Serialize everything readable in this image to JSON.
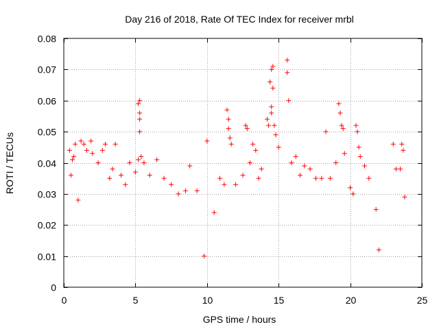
{
  "chart_data": {
    "type": "scatter",
    "title": "Day 216 of 2018, Rate Of TEC Index for receiver mrbl",
    "xlabel": "GPS time / hours",
    "ylabel": "ROTI / TECUs",
    "xlim": [
      0,
      25
    ],
    "ylim": [
      0,
      0.08
    ],
    "xticks": [
      0,
      5,
      10,
      15,
      20,
      25
    ],
    "xtick_labels": [
      "0",
      "5",
      "10",
      "15",
      "20",
      "25"
    ],
    "yticks": [
      0,
      0.01,
      0.02,
      0.03,
      0.04,
      0.05,
      0.06,
      0.07,
      0.08
    ],
    "ytick_labels": [
      "0",
      "0.01",
      "0.02",
      "0.03",
      "0.04",
      "0.05",
      "0.06",
      "0.07",
      "0.08"
    ],
    "grid": true,
    "marker": "+",
    "colors": {
      "series": "#ff0000",
      "grid": "#a0a0a0",
      "axis": "#000000"
    },
    "series": [
      {
        "name": "ROTI",
        "points": [
          [
            0.4,
            0.044
          ],
          [
            0.5,
            0.036
          ],
          [
            0.6,
            0.041
          ],
          [
            0.7,
            0.042
          ],
          [
            0.8,
            0.046
          ],
          [
            1.0,
            0.028
          ],
          [
            1.2,
            0.047
          ],
          [
            1.4,
            0.046
          ],
          [
            1.6,
            0.044
          ],
          [
            1.9,
            0.047
          ],
          [
            2.0,
            0.043
          ],
          [
            2.4,
            0.04
          ],
          [
            2.7,
            0.044
          ],
          [
            2.9,
            0.046
          ],
          [
            3.2,
            0.035
          ],
          [
            3.4,
            0.038
          ],
          [
            3.6,
            0.046
          ],
          [
            4.0,
            0.036
          ],
          [
            4.3,
            0.033
          ],
          [
            4.6,
            0.04
          ],
          [
            5.0,
            0.037
          ],
          [
            5.2,
            0.041
          ],
          [
            5.2,
            0.059
          ],
          [
            5.3,
            0.06
          ],
          [
            5.3,
            0.056
          ],
          [
            5.3,
            0.054
          ],
          [
            5.3,
            0.05
          ],
          [
            5.4,
            0.042
          ],
          [
            5.6,
            0.04
          ],
          [
            6.0,
            0.036
          ],
          [
            6.5,
            0.041
          ],
          [
            7.0,
            0.035
          ],
          [
            7.5,
            0.033
          ],
          [
            8.0,
            0.03
          ],
          [
            8.5,
            0.031
          ],
          [
            8.8,
            0.039
          ],
          [
            9.3,
            0.031
          ],
          [
            9.8,
            0.01
          ],
          [
            10.0,
            0.047
          ],
          [
            10.5,
            0.024
          ],
          [
            10.9,
            0.035
          ],
          [
            11.2,
            0.033
          ],
          [
            11.4,
            0.057
          ],
          [
            11.5,
            0.054
          ],
          [
            11.5,
            0.051
          ],
          [
            11.6,
            0.048
          ],
          [
            11.7,
            0.046
          ],
          [
            12.0,
            0.033
          ],
          [
            12.5,
            0.036
          ],
          [
            12.7,
            0.052
          ],
          [
            12.8,
            0.051
          ],
          [
            13.0,
            0.04
          ],
          [
            13.2,
            0.046
          ],
          [
            13.4,
            0.044
          ],
          [
            13.6,
            0.035
          ],
          [
            13.8,
            0.038
          ],
          [
            14.2,
            0.054
          ],
          [
            14.3,
            0.052
          ],
          [
            14.4,
            0.066
          ],
          [
            14.5,
            0.07
          ],
          [
            14.6,
            0.071
          ],
          [
            14.6,
            0.064
          ],
          [
            14.5,
            0.058
          ],
          [
            14.5,
            0.056
          ],
          [
            14.7,
            0.052
          ],
          [
            14.8,
            0.049
          ],
          [
            15.0,
            0.045
          ],
          [
            15.6,
            0.073
          ],
          [
            15.6,
            0.069
          ],
          [
            15.7,
            0.06
          ],
          [
            15.9,
            0.04
          ],
          [
            16.2,
            0.042
          ],
          [
            16.5,
            0.036
          ],
          [
            16.8,
            0.039
          ],
          [
            17.2,
            0.038
          ],
          [
            17.6,
            0.035
          ],
          [
            18.0,
            0.035
          ],
          [
            18.3,
            0.05
          ],
          [
            18.6,
            0.035
          ],
          [
            19.0,
            0.04
          ],
          [
            19.2,
            0.059
          ],
          [
            19.3,
            0.056
          ],
          [
            19.4,
            0.052
          ],
          [
            19.5,
            0.051
          ],
          [
            19.6,
            0.043
          ],
          [
            20.0,
            0.032
          ],
          [
            20.2,
            0.03
          ],
          [
            20.4,
            0.052
          ],
          [
            20.5,
            0.05
          ],
          [
            20.6,
            0.045
          ],
          [
            20.7,
            0.042
          ],
          [
            21.0,
            0.039
          ],
          [
            21.3,
            0.035
          ],
          [
            21.8,
            0.025
          ],
          [
            22.0,
            0.012
          ],
          [
            23.0,
            0.046
          ],
          [
            23.2,
            0.038
          ],
          [
            23.5,
            0.038
          ],
          [
            23.6,
            0.046
          ],
          [
            23.7,
            0.044
          ],
          [
            23.8,
            0.029
          ]
        ]
      }
    ]
  }
}
